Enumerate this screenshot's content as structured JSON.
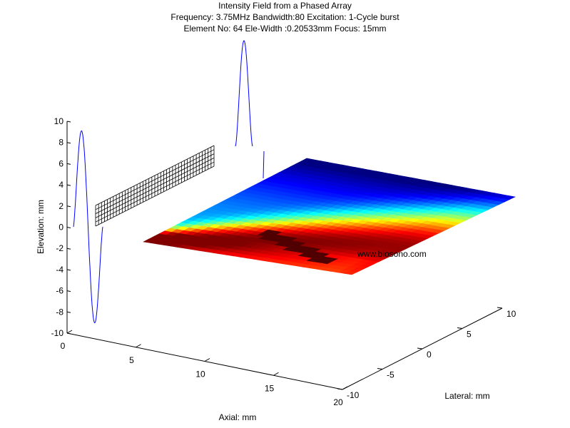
{
  "chart_data": {
    "type": "surface3d",
    "title_lines": [
      "Intensity Field from a Phased Array",
      "Frequency: 3.75MHz  Bandwidth:80 Excitation: 1-Cycle burst",
      "Element No: 64 Ele-Width :0.20533mm Focus: 15mm"
    ],
    "axes": {
      "elevation": {
        "label": "Elevation: mm",
        "range": [
          -10,
          10
        ],
        "ticks": [
          "-10",
          "-8",
          "-6",
          "-4",
          "-2",
          "0",
          "2",
          "4",
          "6",
          "8",
          "10"
        ]
      },
      "axial": {
        "label": "Axial: mm",
        "range": [
          0,
          20
        ],
        "ticks": [
          "0",
          "5",
          "10",
          "15",
          "20"
        ]
      },
      "lateral": {
        "label": "Lateral: mm",
        "range": [
          -10,
          10
        ],
        "ticks": [
          "-10",
          "-5",
          "0",
          "5",
          "10"
        ]
      }
    },
    "focus_mm": 15,
    "colormap": "jet",
    "annotation": "www.biosono.com"
  }
}
